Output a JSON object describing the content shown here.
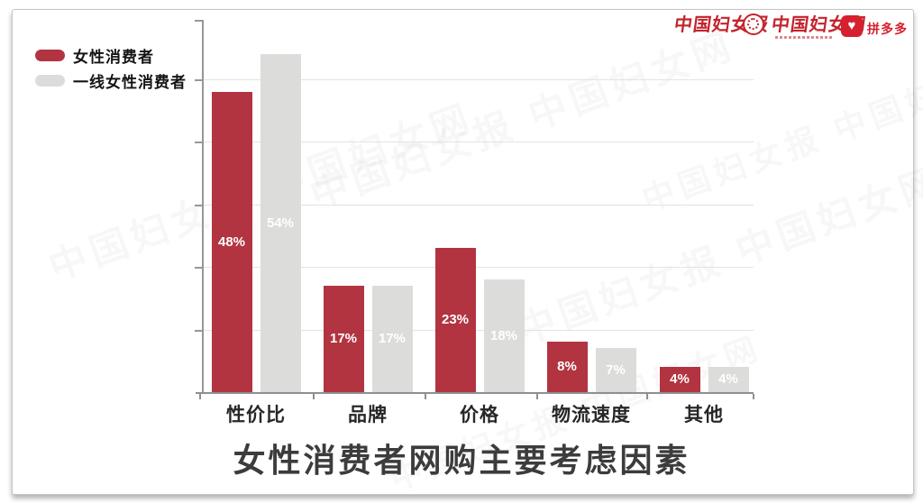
{
  "header": {
    "logos": {
      "news": "中国妇女报",
      "web": "中国妇女网",
      "pdd": "拼多多",
      "pdd_heart": "♥"
    },
    "logo_red": "#c3242c"
  },
  "watermark": {
    "text": "中国妇女报 中国妇女网"
  },
  "chart_data": {
    "type": "bar",
    "title": "女性消费者网购主要考虑因素",
    "categories": [
      "性价比",
      "品牌",
      "价格",
      "物流速度",
      "其他"
    ],
    "series": [
      {
        "name": "女性消费者",
        "color": "#b23440",
        "values": [
          48,
          17,
          23,
          8,
          4
        ]
      },
      {
        "name": "一线女性消费者",
        "color": "#dcdcdb",
        "values": [
          54,
          17,
          18,
          7,
          4
        ]
      }
    ],
    "value_suffix": "%",
    "ylim": [
      0,
      60
    ],
    "grid": true,
    "gridline_values": [
      10,
      20,
      30,
      40,
      50
    ],
    "legend_position": "top-left",
    "bar_label_color": "#ffffff",
    "axis_color": "#8f8f8f",
    "gridline_color": "#e3e3e3"
  }
}
